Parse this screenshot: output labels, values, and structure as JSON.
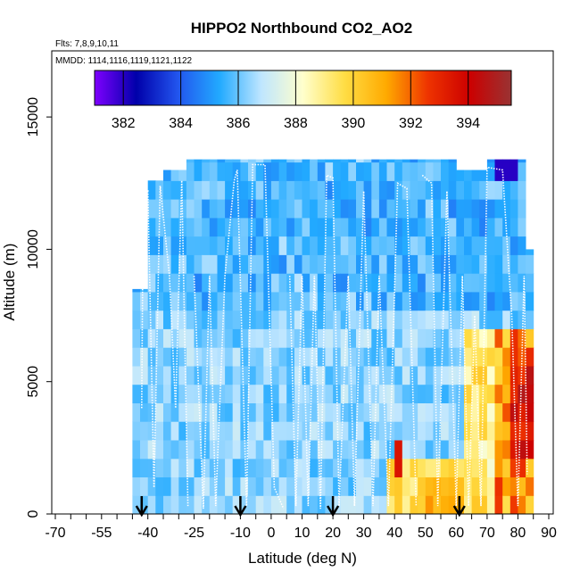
{
  "chart_data": {
    "type": "heatmap",
    "title": "HIPPO2 Northbound CO2_AO2",
    "flights_label": "Flts: 7,8,9,10,11",
    "dates_label": "MMDD: 1114,1116,1119,1121,1122",
    "xlabel": "Latitude (deg N)",
    "ylabel": "Altitude (m)",
    "xlim": [
      -70,
      90
    ],
    "ylim": [
      0,
      17500
    ],
    "x_ticks": [
      -70,
      -55,
      -40,
      -25,
      -10,
      0,
      10,
      20,
      30,
      40,
      50,
      60,
      70,
      80,
      90
    ],
    "y_ticks": [
      0,
      5000,
      10000,
      15000
    ],
    "colorbar": {
      "range": [
        381,
        395.5
      ],
      "ticks": [
        382,
        384,
        386,
        388,
        390,
        392,
        394
      ],
      "colors": [
        "#7f00ff",
        "#0000aa",
        "#2255ee",
        "#22aaff",
        "#bfe6ff",
        "#ffffcc",
        "#ffdd44",
        "#ffaa00",
        "#ee3300",
        "#cc0000",
        "#993333"
      ]
    },
    "profile_arrows_latitude": [
      -42,
      -10,
      20,
      61
    ]
  }
}
